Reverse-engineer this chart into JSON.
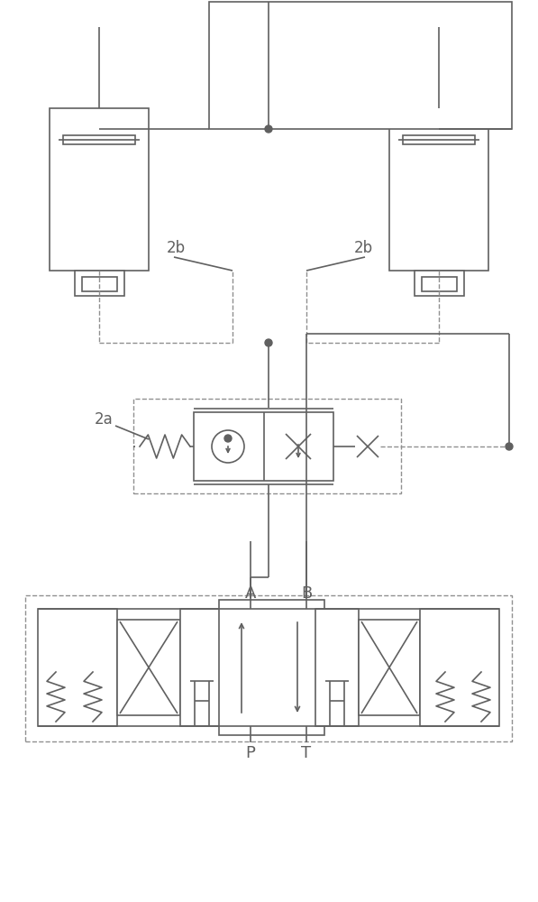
{
  "bg": "#ffffff",
  "lc": "#606060",
  "dc": "#909090",
  "lw": 1.2,
  "dlw": 1.0,
  "figsize": [
    5.97,
    10.0
  ],
  "dpi": 100,
  "labels": {
    "2b_left": "2b",
    "2b_right": "2b",
    "2a": "2a",
    "A": "A",
    "B": "B",
    "P": "P",
    "T": "T"
  }
}
